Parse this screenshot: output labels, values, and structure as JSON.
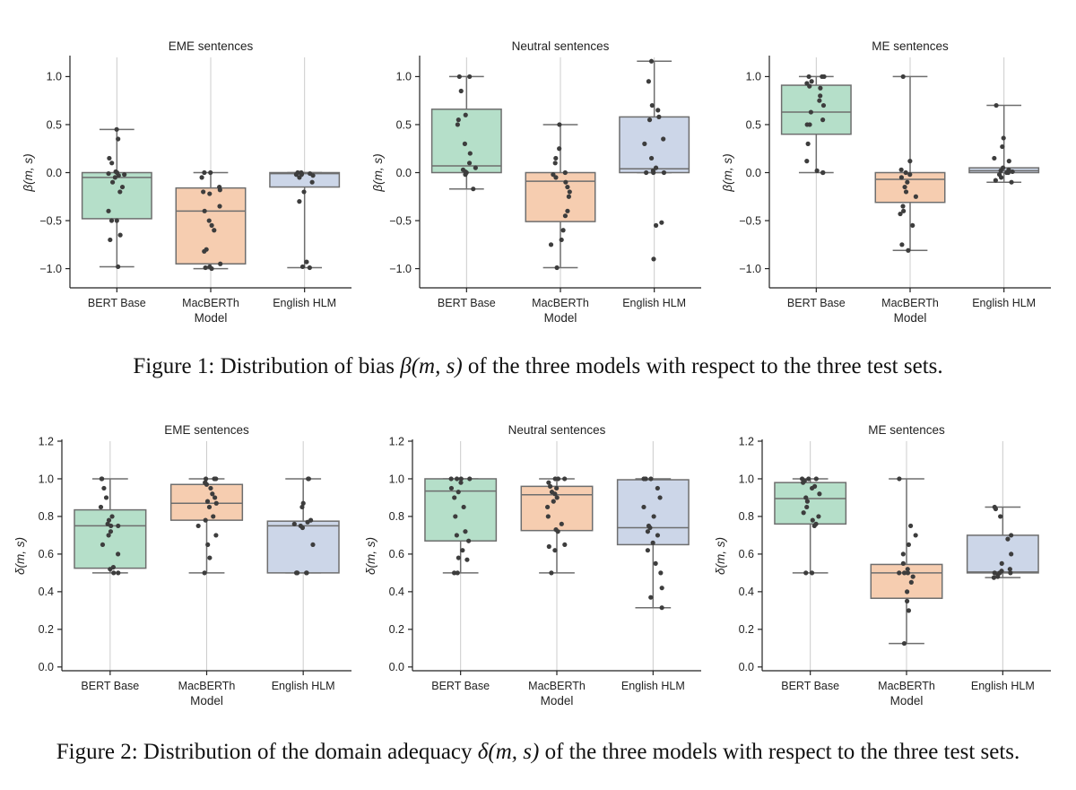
{
  "chart_data": [
    {
      "type": "box",
      "title": "EME sentences",
      "xlabel": "Model",
      "ylabel": "β(m, s)",
      "ylim": [
        -1.2,
        1.2
      ],
      "yticks": [
        "1.0",
        "0.5",
        "0.0",
        "−0.5",
        "−1.0"
      ],
      "categories": [
        "BERT Base",
        "MacBERTh",
        "English HLM"
      ],
      "boxes": [
        {
          "q1": -0.48,
          "median": -0.05,
          "q3": 0.0,
          "whisker_low": -0.98,
          "whisker_high": 0.45,
          "points": [
            0.45,
            0.35,
            0.15,
            0.1,
            0.01,
            0.0,
            -0.01,
            -0.02,
            -0.03,
            -0.05,
            -0.1,
            -0.15,
            -0.2,
            -0.4,
            -0.5,
            -0.5,
            -0.65,
            -0.7,
            -0.98
          ]
        },
        {
          "q1": -0.95,
          "median": -0.4,
          "q3": -0.16,
          "whisker_low": -1.0,
          "whisker_high": 0.0,
          "points": [
            0.0,
            0.0,
            -0.05,
            -0.15,
            -0.18,
            -0.2,
            -0.22,
            -0.35,
            -0.4,
            -0.5,
            -0.55,
            -0.6,
            -0.8,
            -0.82,
            -0.95,
            -0.98,
            -0.99,
            -1.0
          ]
        },
        {
          "q1": -0.15,
          "median": -0.01,
          "q3": 0.0,
          "whisker_low": -0.99,
          "whisker_high": 0.0,
          "points": [
            0.0,
            0.0,
            -0.01,
            -0.01,
            -0.02,
            -0.02,
            -0.03,
            -0.05,
            -0.1,
            -0.2,
            -0.3,
            -0.93,
            -0.98,
            -0.99
          ]
        }
      ]
    },
    {
      "type": "box",
      "title": "Neutral sentences",
      "xlabel": "Model",
      "ylabel": "β(m, s)",
      "ylim": [
        -1.2,
        1.2
      ],
      "yticks": [
        "1.0",
        "0.5",
        "0.0",
        "−0.5",
        "−1.0"
      ],
      "categories": [
        "BERT Base",
        "MacBERTh",
        "English HLM"
      ],
      "boxes": [
        {
          "q1": 0.0,
          "median": 0.07,
          "q3": 0.66,
          "whisker_low": -0.17,
          "whisker_high": 1.0,
          "points": [
            1.0,
            1.0,
            0.85,
            0.6,
            0.55,
            0.5,
            0.3,
            0.2,
            0.1,
            0.05,
            0.03,
            0.01,
            0.0,
            -0.02,
            -0.17
          ]
        },
        {
          "q1": -0.51,
          "median": -0.09,
          "q3": 0.0,
          "whisker_low": -0.99,
          "whisker_high": 0.5,
          "points": [
            0.5,
            0.25,
            0.15,
            0.1,
            0.0,
            -0.02,
            -0.05,
            -0.1,
            -0.15,
            -0.2,
            -0.25,
            -0.4,
            -0.45,
            -0.6,
            -0.7,
            -0.75,
            -0.99
          ]
        },
        {
          "q1": 0.0,
          "median": 0.04,
          "q3": 0.58,
          "whisker_low": 0.0,
          "whisker_high": 1.16,
          "points": [
            1.16,
            0.95,
            0.7,
            0.65,
            0.58,
            0.55,
            0.35,
            0.3,
            0.15,
            0.05,
            0.02,
            0.0,
            0.0,
            0.0,
            -0.52,
            -0.55,
            -0.9
          ]
        }
      ]
    },
    {
      "type": "box",
      "title": "ME sentences",
      "xlabel": "Model",
      "ylabel": "β(m, s)",
      "ylim": [
        -1.2,
        1.2
      ],
      "yticks": [
        "1.0",
        "0.5",
        "0.0",
        "−0.5",
        "−1.0"
      ],
      "categories": [
        "BERT Base",
        "MacBERTh",
        "English HLM"
      ],
      "boxes": [
        {
          "q1": 0.4,
          "median": 0.63,
          "q3": 0.91,
          "whisker_low": 0.0,
          "whisker_high": 1.0,
          "points": [
            1.0,
            1.0,
            1.0,
            0.95,
            0.93,
            0.9,
            0.88,
            0.8,
            0.75,
            0.7,
            0.63,
            0.55,
            0.5,
            0.5,
            0.3,
            0.12,
            0.02,
            0.0,
            0.0
          ]
        },
        {
          "q1": -0.31,
          "median": -0.07,
          "q3": 0.0,
          "whisker_low": -0.81,
          "whisker_high": 1.0,
          "points": [
            1.0,
            0.12,
            0.03,
            0.0,
            -0.02,
            -0.05,
            -0.1,
            -0.15,
            -0.2,
            -0.25,
            -0.35,
            -0.4,
            -0.43,
            -0.55,
            -0.75,
            -0.81
          ]
        },
        {
          "q1": 0.0,
          "median": 0.02,
          "q3": 0.05,
          "whisker_low": -0.1,
          "whisker_high": 0.7,
          "points": [
            0.7,
            0.36,
            0.27,
            0.15,
            0.12,
            0.05,
            0.03,
            0.02,
            0.01,
            0.0,
            0.0,
            -0.02,
            -0.05,
            -0.08,
            -0.1
          ]
        }
      ]
    },
    {
      "type": "box",
      "title": "EME sentences",
      "xlabel": "Model",
      "ylabel": "δ(m, s)",
      "ylim": [
        -0.02,
        1.2
      ],
      "yticks": [
        "1.2",
        "1.0",
        "0.8",
        "0.6",
        "0.4",
        "0.2",
        "0.0"
      ],
      "categories": [
        "BERT Base",
        "MacBERTh",
        "English HLM"
      ],
      "boxes": [
        {
          "q1": 0.525,
          "median": 0.75,
          "q3": 0.835,
          "whisker_low": 0.5,
          "whisker_high": 1.0,
          "points": [
            1.0,
            1.0,
            0.95,
            0.9,
            0.85,
            0.8,
            0.78,
            0.76,
            0.75,
            0.75,
            0.72,
            0.7,
            0.65,
            0.6,
            0.53,
            0.52,
            0.5,
            0.5
          ]
        },
        {
          "q1": 0.78,
          "median": 0.87,
          "q3": 0.97,
          "whisker_low": 0.5,
          "whisker_high": 1.0,
          "points": [
            1.0,
            1.0,
            1.0,
            0.98,
            0.97,
            0.95,
            0.92,
            0.9,
            0.88,
            0.87,
            0.85,
            0.8,
            0.78,
            0.75,
            0.7,
            0.65,
            0.58,
            0.5
          ]
        },
        {
          "q1": 0.5,
          "median": 0.75,
          "q3": 0.775,
          "whisker_low": 0.5,
          "whisker_high": 1.0,
          "points": [
            1.0,
            1.0,
            0.87,
            0.85,
            0.78,
            0.77,
            0.76,
            0.75,
            0.74,
            0.65,
            0.5,
            0.5,
            0.5,
            0.5,
            0.5
          ]
        }
      ]
    },
    {
      "type": "box",
      "title": "Neutral sentences",
      "xlabel": "Model",
      "ylabel": "δ(m, s)",
      "ylim": [
        -0.02,
        1.2
      ],
      "yticks": [
        "1.2",
        "1.0",
        "0.8",
        "0.6",
        "0.4",
        "0.2",
        "0.0"
      ],
      "categories": [
        "BERT Base",
        "MacBERTh",
        "English HLM"
      ],
      "boxes": [
        {
          "q1": 0.67,
          "median": 0.935,
          "q3": 1.0,
          "whisker_low": 0.5,
          "whisker_high": 1.0,
          "points": [
            1.0,
            1.0,
            1.0,
            1.0,
            0.98,
            0.95,
            0.93,
            0.9,
            0.85,
            0.8,
            0.72,
            0.7,
            0.67,
            0.62,
            0.58,
            0.57,
            0.5,
            0.5
          ]
        },
        {
          "q1": 0.725,
          "median": 0.915,
          "q3": 0.96,
          "whisker_low": 0.5,
          "whisker_high": 1.0,
          "points": [
            1.0,
            1.0,
            1.0,
            0.98,
            0.96,
            0.95,
            0.93,
            0.92,
            0.9,
            0.88,
            0.85,
            0.8,
            0.76,
            0.73,
            0.72,
            0.65,
            0.64,
            0.62,
            0.5
          ]
        },
        {
          "q1": 0.65,
          "median": 0.74,
          "q3": 0.995,
          "whisker_low": 0.315,
          "whisker_high": 1.0,
          "points": [
            1.0,
            1.0,
            1.0,
            0.95,
            0.9,
            0.85,
            0.8,
            0.75,
            0.74,
            0.72,
            0.7,
            0.66,
            0.62,
            0.55,
            0.5,
            0.42,
            0.37,
            0.315
          ]
        }
      ]
    },
    {
      "type": "box",
      "title": "ME sentences",
      "xlabel": "Model",
      "ylabel": "δ(m, s)",
      "ylim": [
        -0.02,
        1.2
      ],
      "yticks": [
        "1.2",
        "1.0",
        "0.8",
        "0.6",
        "0.4",
        "0.2",
        "0.0"
      ],
      "categories": [
        "BERT Base",
        "MacBERTh",
        "English HLM"
      ],
      "boxes": [
        {
          "q1": 0.76,
          "median": 0.895,
          "q3": 0.98,
          "whisker_low": 0.5,
          "whisker_high": 1.0,
          "points": [
            1.0,
            1.0,
            1.0,
            0.99,
            0.98,
            0.96,
            0.95,
            0.92,
            0.9,
            0.88,
            0.85,
            0.82,
            0.8,
            0.78,
            0.76,
            0.75,
            0.5,
            0.5
          ]
        },
        {
          "q1": 0.365,
          "median": 0.5,
          "q3": 0.545,
          "whisker_low": 0.125,
          "whisker_high": 1.0,
          "points": [
            1.0,
            0.75,
            0.7,
            0.65,
            0.6,
            0.55,
            0.52,
            0.5,
            0.5,
            0.5,
            0.48,
            0.45,
            0.4,
            0.35,
            0.3,
            0.125
          ]
        },
        {
          "q1": 0.5,
          "median": 0.505,
          "q3": 0.7,
          "whisker_low": 0.475,
          "whisker_high": 0.85,
          "points": [
            0.85,
            0.84,
            0.8,
            0.7,
            0.68,
            0.6,
            0.55,
            0.52,
            0.51,
            0.5,
            0.5,
            0.5,
            0.49,
            0.48,
            0.475
          ]
        }
      ]
    }
  ],
  "colors": {
    "bert_base": "#b5dfc9",
    "macberth": "#f6cdb0",
    "english_hlm": "#ccd6e8",
    "box_edge": "#6e6e6e",
    "point": "#3d3d3d",
    "grid": "#cccccc",
    "axis": "#222222"
  },
  "caption1": {
    "prefix": "Figure 1: Distribution of bias ",
    "math": "β(m, s)",
    "suffix": " of the three models with respect to the three test sets."
  },
  "caption2": {
    "prefix": "Figure 2: Distribution of the domain adequacy ",
    "math": "δ(m, s)",
    "suffix": " of the three models with respect to the three test sets."
  }
}
